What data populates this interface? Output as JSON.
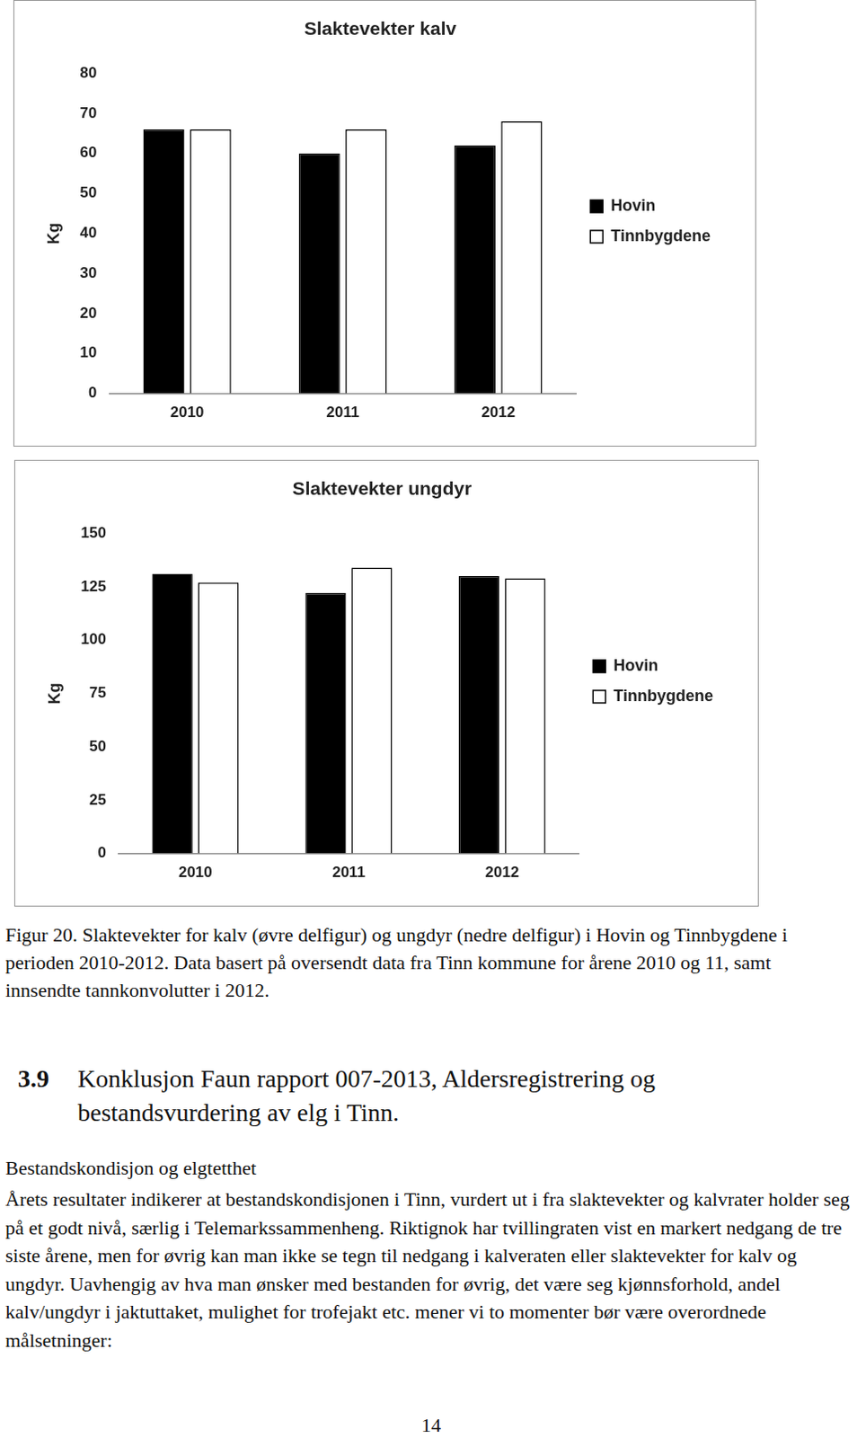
{
  "chart_data": [
    {
      "type": "bar",
      "title": "Slaktevekter kalv",
      "y_label": "Kg",
      "categories": [
        "2010",
        "2011",
        "2012"
      ],
      "series": [
        {
          "name": "Hovin",
          "color": "#000000",
          "values": [
            66,
            60,
            62
          ]
        },
        {
          "name": "Tinnbygdene",
          "color": "#ffffff",
          "values": [
            66,
            66,
            68
          ]
        }
      ],
      "ylim": [
        0,
        80
      ],
      "yticks": [
        0,
        10,
        20,
        30,
        40,
        50,
        60,
        70,
        80
      ],
      "grid": false,
      "legend": "right"
    },
    {
      "type": "bar",
      "title": "Slaktevekter ungdyr",
      "y_label": "Kg",
      "categories": [
        "2010",
        "2011",
        "2012"
      ],
      "series": [
        {
          "name": "Hovin",
          "color": "#000000",
          "values": [
            131,
            122,
            130
          ]
        },
        {
          "name": "Tinnbygdene",
          "color": "#ffffff",
          "values": [
            127,
            134,
            129
          ]
        }
      ],
      "ylim": [
        0,
        150
      ],
      "yticks": [
        0,
        25,
        50,
        75,
        100,
        125,
        150
      ],
      "grid": false,
      "legend": "right"
    }
  ],
  "document": {
    "caption": "Figur 20. Slaktevekter for kalv (øvre delfigur) og ungdyr (nedre delfigur) i Hovin og Tinnbygdene i perioden 2010-2012. Data basert på oversendt data fra Tinn kommune for årene 2010 og 11, samt innsendte tannkonvolutter i 2012.",
    "section": {
      "number": "3.9",
      "title": "Konklusjon Faun rapport 007-2013, Aldersregistrering og bestandsvurdering av elg i Tinn."
    },
    "subheading": "Bestandskondisjon og elgtetthet",
    "paragraph": "Årets resultater indikerer at bestandskondisjonen i Tinn, vurdert ut i fra slaktevekter og kalvrater holder seg på et godt nivå, særlig i Telemarkssammenheng. Riktignok har tvillingraten vist en markert nedgang de tre siste årene, men for øvrig kan man ikke se tegn til nedgang i kalveraten eller slaktevekter for kalv og ungdyr. Uavhengig av hva man ønsker med bestanden for øvrig, det være seg kjønnsforhold, andel kalv/ungdyr i jaktuttaket, mulighet for trofejakt etc. mener vi to momenter bør være overordnede målsetninger:",
    "page_number": "14"
  }
}
